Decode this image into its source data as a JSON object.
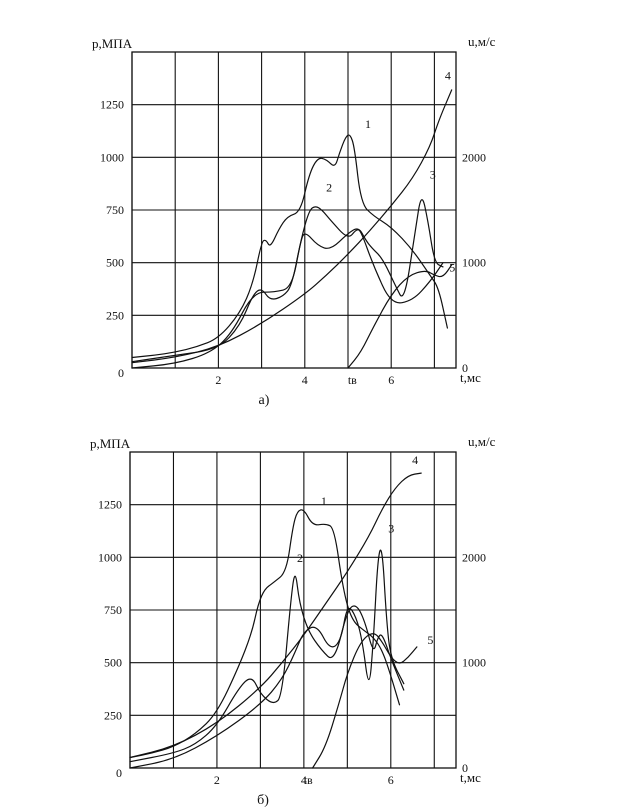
{
  "chart_data": [
    {
      "type": "line",
      "caption": "а)",
      "ylabel": "р,МПА",
      "y2label": "u,м/с",
      "xlabel": "t,мс",
      "marker_label": "tв",
      "marker_x": 5.1,
      "xlim": [
        0,
        7.5
      ],
      "ylim": [
        0,
        1500
      ],
      "y2lim": [
        0,
        3000
      ],
      "x_grid": [
        0,
        1,
        2,
        3,
        4,
        5,
        6,
        7
      ],
      "y_grid": [
        0,
        250,
        500,
        750,
        1000,
        1250,
        1500
      ],
      "x_ticks": [
        {
          "v": 2,
          "label": "2"
        },
        {
          "v": 4,
          "label": "4"
        },
        {
          "v": 6,
          "label": "6"
        }
      ],
      "y_ticks": [
        {
          "v": 0,
          "label": "0"
        },
        {
          "v": 250,
          "label": "250"
        },
        {
          "v": 500,
          "label": "500"
        },
        {
          "v": 750,
          "label": "750"
        },
        {
          "v": 1000,
          "label": "1000"
        },
        {
          "v": 1250,
          "label": "1250"
        }
      ],
      "y2_ticks": [
        {
          "v": 0,
          "label": "0"
        },
        {
          "v": 1000,
          "label": "1000"
        },
        {
          "v": 2000,
          "label": "2000"
        }
      ],
      "series": [
        {
          "name": "1",
          "axis": "left",
          "label_at": [
            5.3,
            1120
          ],
          "x": [
            0,
            0.5,
            1,
            1.5,
            2,
            2.5,
            2.8,
            3.0,
            3.1,
            3.2,
            3.4,
            3.6,
            3.9,
            4.1,
            4.3,
            4.5,
            4.7,
            4.8,
            4.95,
            5.05,
            5.15,
            5.3,
            5.6,
            6.0,
            6.5,
            6.9,
            7.1,
            7.3
          ],
          "y": [
            50,
            60,
            75,
            100,
            140,
            260,
            400,
            600,
            610,
            570,
            660,
            720,
            740,
            920,
            1000,
            990,
            950,
            1020,
            1100,
            1110,
            1050,
            780,
            720,
            670,
            560,
            440,
            380,
            190
          ]
        },
        {
          "name": "2",
          "axis": "left",
          "label_at": [
            4.4,
            820
          ],
          "x": [
            0,
            1,
            2,
            2.5,
            2.8,
            3.0,
            3.2,
            3.5,
            3.7,
            3.9,
            4.1,
            4.25,
            4.4,
            4.6,
            5.0,
            5.2,
            5.3,
            5.6,
            6.0,
            6.5,
            6.9,
            7.2
          ],
          "y": [
            30,
            60,
            90,
            200,
            350,
            380,
            320,
            340,
            390,
            600,
            750,
            770,
            750,
            700,
            610,
            660,
            650,
            480,
            300,
            320,
            410,
            500
          ]
        },
        {
          "name": "3",
          "axis": "left",
          "label_at": [
            6.8,
            880
          ],
          "x": [
            0,
            1,
            1.8,
            2.3,
            2.8,
            3.3,
            3.7,
            3.9,
            4.0,
            4.3,
            4.6,
            5.0,
            5.25,
            5.4,
            5.55,
            5.8,
            6.1,
            6.3,
            6.55,
            6.7,
            6.85,
            7.0,
            7.2
          ],
          "y": [
            0,
            20,
            70,
            160,
            360,
            360,
            380,
            600,
            650,
            580,
            560,
            640,
            670,
            610,
            570,
            520,
            390,
            310,
            640,
            840,
            700,
            500,
            480
          ]
        },
        {
          "name": "4",
          "axis": "right",
          "label_at": [
            7.15,
            2700
          ],
          "x": [
            0,
            1,
            2,
            3,
            4,
            4.5,
            5.0,
            5.5,
            6.0,
            6.5,
            6.9,
            7.1,
            7.4
          ],
          "y": [
            50,
            100,
            200,
            420,
            700,
            880,
            1080,
            1300,
            1540,
            1800,
            2100,
            2350,
            2640
          ]
        },
        {
          "name": "5",
          "axis": "right",
          "label_at": [
            7.25,
            880
          ],
          "x": [
            5.0,
            5.3,
            5.6,
            6.0,
            6.4,
            6.8,
            7.0,
            7.2,
            7.4
          ],
          "y": [
            0,
            150,
            400,
            700,
            880,
            930,
            880,
            860,
            980
          ]
        }
      ]
    },
    {
      "type": "line",
      "caption": "б)",
      "ylabel": "р,МПА",
      "y2label": "u,м/с",
      "xlabel": "t,мс",
      "marker_label": "tв",
      "marker_x": 4.1,
      "xlim": [
        0,
        7.5
      ],
      "ylim": [
        0,
        1500
      ],
      "y2lim": [
        0,
        3000
      ],
      "x_grid": [
        0,
        1,
        2,
        3,
        4,
        5,
        6,
        7
      ],
      "y_grid": [
        0,
        250,
        500,
        750,
        1000,
        1250,
        1500
      ],
      "x_ticks": [
        {
          "v": 2,
          "label": "2"
        },
        {
          "v": 4,
          "label": "4"
        },
        {
          "v": 6,
          "label": "6"
        }
      ],
      "y_ticks": [
        {
          "v": 0,
          "label": "0"
        },
        {
          "v": 250,
          "label": "250"
        },
        {
          "v": 500,
          "label": "500"
        },
        {
          "v": 750,
          "label": "750"
        },
        {
          "v": 1000,
          "label": "1000"
        },
        {
          "v": 1250,
          "label": "1250"
        }
      ],
      "y2_ticks": [
        {
          "v": 0,
          "label": "0"
        },
        {
          "v": 1000,
          "label": "1000"
        },
        {
          "v": 2000,
          "label": "2000"
        }
      ],
      "series": [
        {
          "name": "1",
          "axis": "left",
          "label_at": [
            4.3,
            1230
          ],
          "x": [
            0,
            0.5,
            1,
            1.5,
            2,
            2.5,
            2.8,
            2.95,
            3.1,
            3.3,
            3.6,
            3.75,
            3.85,
            4.0,
            4.2,
            4.5,
            4.7,
            4.9,
            5.1,
            5.4,
            5.6,
            5.8,
            6.0,
            6.2
          ],
          "y": [
            50,
            70,
            100,
            160,
            260,
            480,
            640,
            780,
            850,
            880,
            930,
            1150,
            1220,
            1230,
            1150,
            1160,
            1140,
            850,
            700,
            650,
            620,
            560,
            440,
            300
          ]
        },
        {
          "name": "2",
          "axis": "left",
          "label_at": [
            3.75,
            960
          ],
          "x": [
            0,
            1,
            1.5,
            2.0,
            2.5,
            2.8,
            3.0,
            3.3,
            3.5,
            3.7,
            3.8,
            3.9,
            4.1,
            4.4,
            4.7,
            5.0,
            5.2,
            5.4,
            5.6,
            5.7,
            5.8,
            6.0,
            6.3
          ],
          "y": [
            30,
            70,
            110,
            200,
            380,
            440,
            350,
            300,
            340,
            800,
            950,
            780,
            650,
            560,
            500,
            750,
            780,
            700,
            540,
            620,
            640,
            520,
            370
          ]
        },
        {
          "name": "3",
          "axis": "left",
          "label_at": [
            5.85,
            1100
          ],
          "x": [
            0,
            1,
            2,
            3,
            3.5,
            3.8,
            4.0,
            4.3,
            4.6,
            4.85,
            5.0,
            5.2,
            5.35,
            5.5,
            5.6,
            5.7,
            5.8,
            5.9,
            6.0,
            6.3
          ],
          "y": [
            0,
            40,
            150,
            300,
            420,
            550,
            650,
            680,
            560,
            600,
            780,
            720,
            600,
            360,
            600,
            1000,
            1060,
            700,
            520,
            400
          ]
        },
        {
          "name": "4",
          "axis": "right",
          "label_at": [
            6.4,
            2850
          ],
          "x": [
            0,
            1,
            2,
            3,
            3.5,
            4.0,
            4.5,
            5.0,
            5.5,
            5.8,
            6.1,
            6.4,
            6.7
          ],
          "y": [
            100,
            200,
            420,
            760,
            1000,
            1260,
            1560,
            1860,
            2200,
            2460,
            2660,
            2780,
            2800
          ]
        },
        {
          "name": "5",
          "axis": "right",
          "label_at": [
            6.75,
            1140
          ],
          "x": [
            4.2,
            4.5,
            4.8,
            5.0,
            5.3,
            5.6,
            5.8,
            6.0,
            6.2,
            6.4,
            6.6
          ],
          "y": [
            0,
            200,
            600,
            900,
            1200,
            1300,
            1200,
            1050,
            980,
            1050,
            1150
          ]
        }
      ]
    }
  ]
}
